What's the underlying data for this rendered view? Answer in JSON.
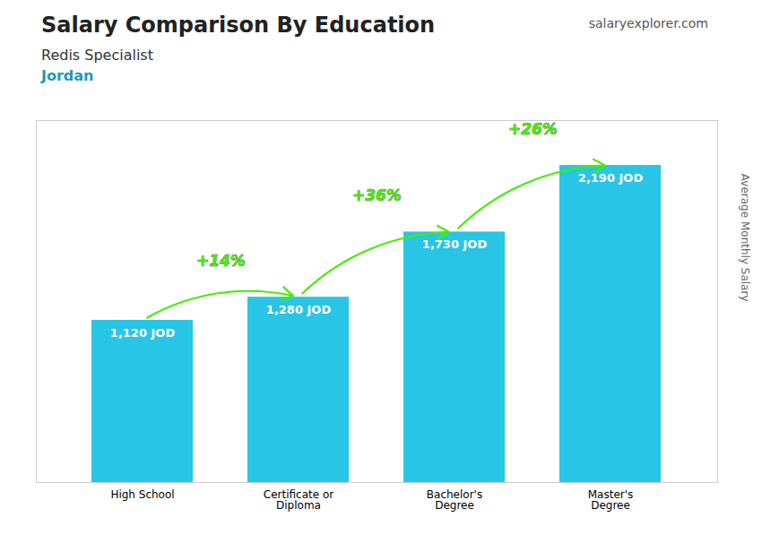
{
  "chart_data": {
    "type": "bar",
    "title": "Salary Comparison By Education",
    "subtitle": "Redis Specialist",
    "annotations": [
      {
        "text": "Jordan"
      },
      {
        "text": "salaryexplorer.com"
      },
      {
        "text": "+14%",
        "from": "High School",
        "to": "Certificate or\nDiploma",
        "color": "#44ee00"
      },
      {
        "text": "+36%",
        "from": "Certificate or\nDiploma",
        "to": "Bachelor's\nDegree",
        "color": "#44ee00"
      },
      {
        "text": "+26%",
        "from": "Bachelor's\nDegree",
        "to": "Master's\nDegree",
        "color": "#44ee00"
      }
    ],
    "categories": [
      "High School",
      "Certificate or\nDiploma",
      "Bachelor's\nDegree",
      "Master's\nDegree"
    ],
    "values": [
      1120,
      1280,
      1730,
      2190
    ],
    "value_labels": [
      "1,120 JOD",
      "1,280 JOD",
      "1,730 JOD",
      "2,190 JOD"
    ],
    "data_labels": true,
    "color": "#29c5e6",
    "ylabel": "Average Monthly Salary",
    "ylim": [
      0,
      2500
    ],
    "tick_labels": "x",
    "grid": false
  }
}
